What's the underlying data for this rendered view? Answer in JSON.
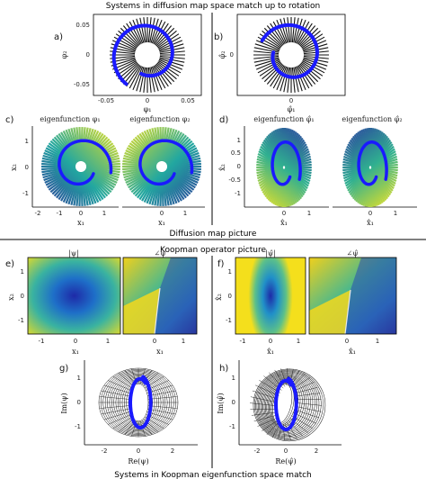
{
  "titles": {
    "top": "Systems in diffusion map space match up to rotation",
    "middle_diffusion": "Diffusion map picture",
    "middle_koopman": "Koopman operator picture",
    "bottom": "Systems in Koopman eigenfunction space match"
  },
  "panels": {
    "a": {
      "label": "a)",
      "ylabel": "φ₂",
      "xlabel": "φ₁",
      "xticks": [
        "-0.05",
        "0",
        "0.05"
      ],
      "yticks": [
        "0.05",
        "0",
        "-0.05"
      ]
    },
    "b": {
      "label": "b)",
      "ylabel": "φ̂₂",
      "xlabel": "φ̂₁",
      "xticks": [
        "0"
      ],
      "yticks": [
        "0"
      ]
    },
    "c": {
      "label": "c)",
      "ylabel": "x₂",
      "xlabel": "x₁",
      "sub1": "eigenfunction φ₁",
      "sub2": "eigenfunction φ₂",
      "xticks": [
        "-2",
        "-1",
        "0",
        "1",
        "0",
        "1"
      ],
      "yticks": [
        "1",
        "0",
        "-1"
      ]
    },
    "d": {
      "label": "d)",
      "ylabel": "x̂₂",
      "xlabel": "x̂₁",
      "sub1": "eigenfunction φ̂₁",
      "sub2": "eigenfunction φ̂₂",
      "xticks": [
        "0",
        "1",
        "0",
        "1"
      ],
      "yticks": [
        "1",
        "0.5",
        "0",
        "-0.5",
        "-1"
      ]
    },
    "e": {
      "label": "e)",
      "ylabel": "x₂",
      "xlabel": "x₁",
      "sub1": "|ψ|",
      "sub2": "∠ψ",
      "xticks": [
        "-1",
        "0",
        "1",
        "0",
        "1"
      ],
      "yticks": [
        "1",
        "0",
        "-1"
      ]
    },
    "f": {
      "label": "f)",
      "ylabel": "x̂₂",
      "xlabel": "x̂₁",
      "sub1": "|ψ̂|",
      "sub2": "∠ψ̂",
      "xticks": [
        "-1",
        "0",
        "1",
        "0",
        "1"
      ],
      "yticks": [
        "1",
        "0",
        "-1"
      ]
    },
    "g": {
      "label": "g)",
      "ylabel": "Im(ψ)",
      "xlabel": "Re(ψ)",
      "xticks": [
        "-2",
        "0",
        "2"
      ],
      "yticks": [
        "1",
        "0",
        "-1"
      ]
    },
    "h": {
      "label": "h)",
      "ylabel": "Im(ψ̂)",
      "xlabel": "Re(ψ̂)",
      "xticks": [
        "-2",
        "0",
        "2"
      ],
      "yticks": [
        "1",
        "0",
        "-1"
      ]
    }
  },
  "colors": {
    "trajectory": "#1a1aff",
    "lines": "#111111",
    "colormap_low": "#2c1e8c",
    "colormap_mid": "#21a0a0",
    "colormap_high": "#f5e61e"
  }
}
